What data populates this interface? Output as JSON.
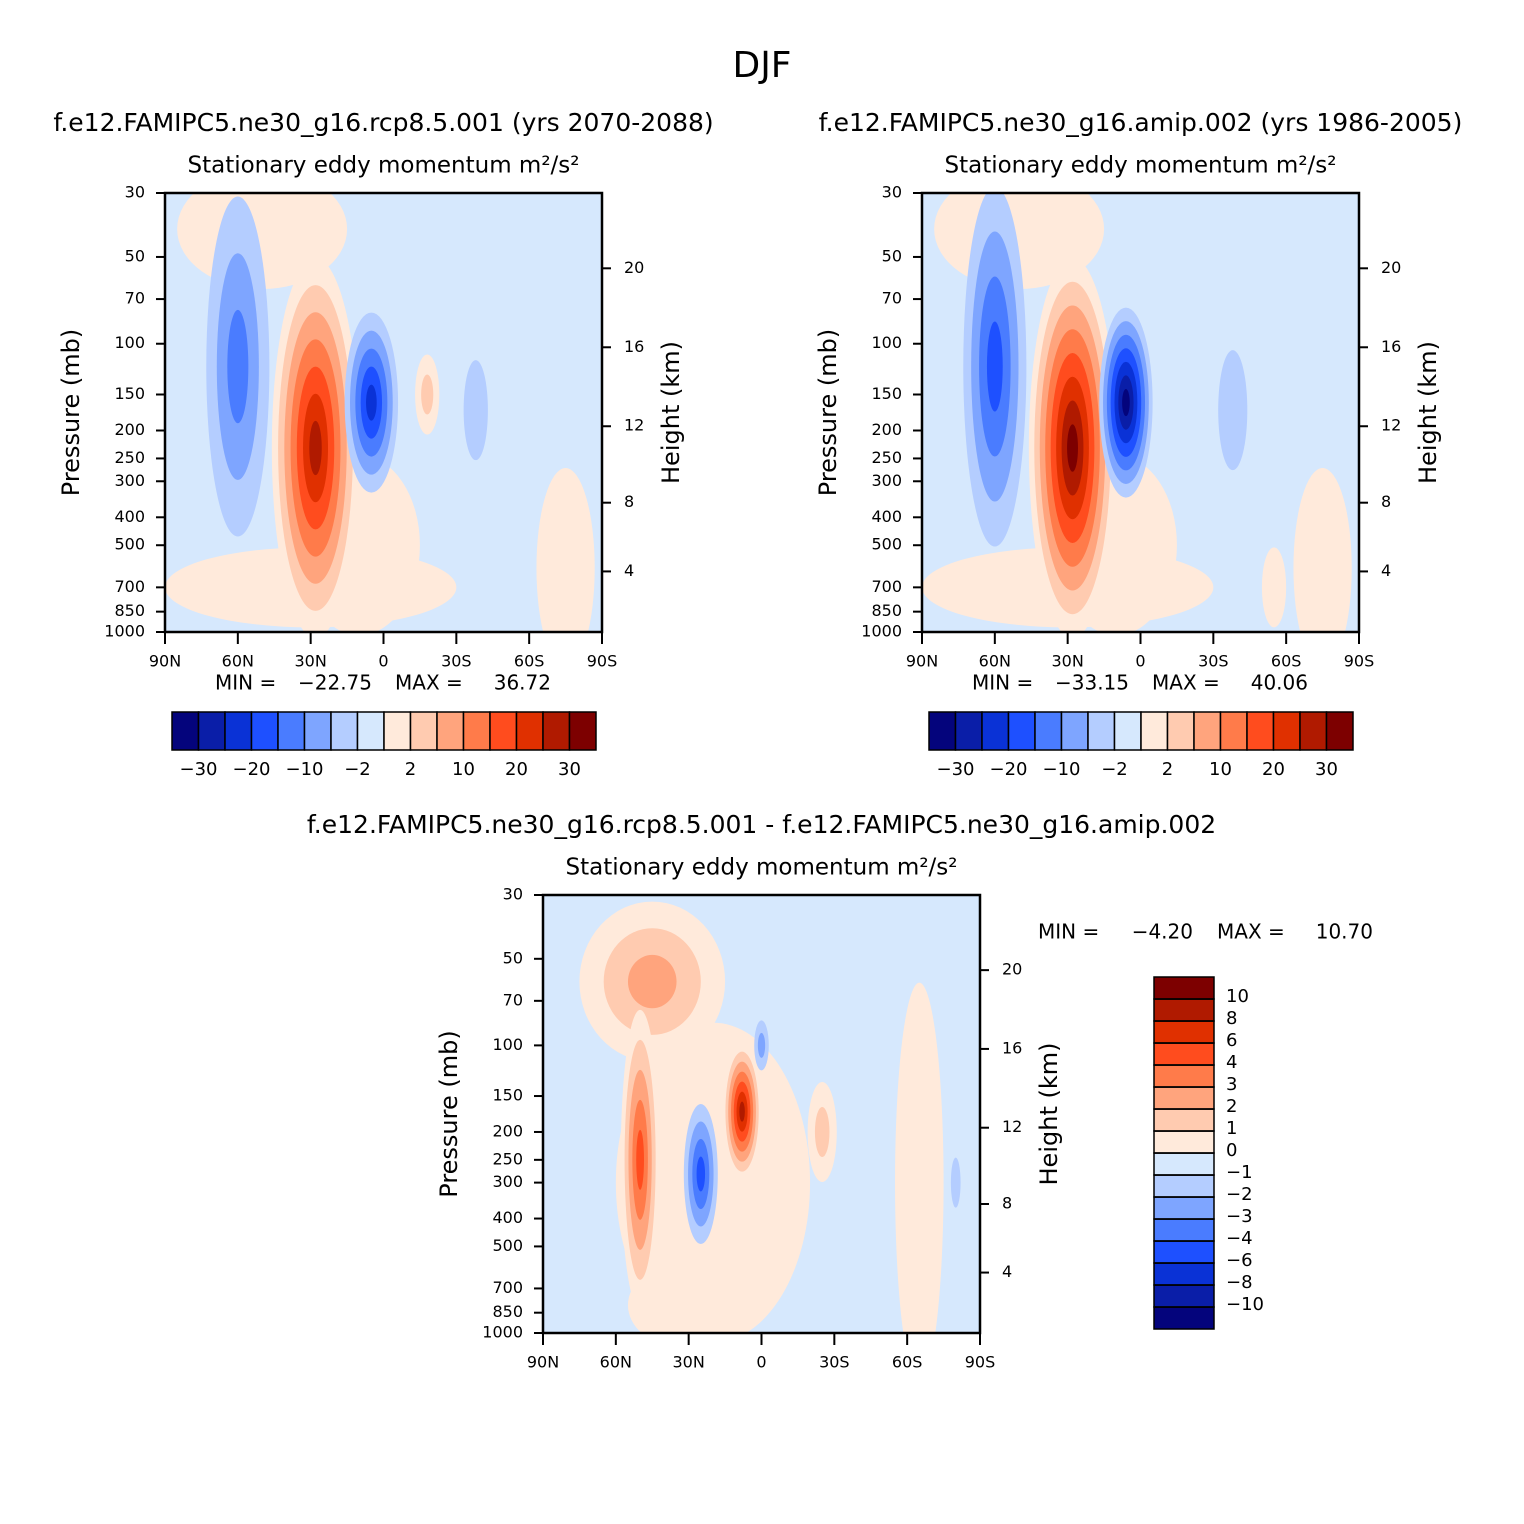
{
  "title": "DJF",
  "chart_data": [
    {
      "type": "contour",
      "title": "f.e12.FAMIPC5.ne30_g16.rcp8.5.001 (yrs 2070-2088)",
      "subtitle": "Stationary eddy momentum  m²/s²",
      "ylabel": "Pressure (mb)",
      "y2label": "Height (km)",
      "xlim": [
        90,
        -90
      ],
      "xticks": [
        {
          "value": 90,
          "label": "90N"
        },
        {
          "value": 60,
          "label": "60N"
        },
        {
          "value": 30,
          "label": "30N"
        },
        0,
        {
          "value": -30,
          "label": "30S"
        },
        {
          "value": -60,
          "label": "60S"
        },
        {
          "value": -90,
          "label": "90S"
        }
      ],
      "ylim": [
        1000,
        30
      ],
      "log_y": true,
      "yticks": [
        30,
        50,
        70,
        100,
        150,
        200,
        250,
        300,
        400,
        500,
        700,
        850,
        1000
      ],
      "y2ticks": [
        4,
        8,
        12,
        16,
        20
      ],
      "min_label": "MIN =",
      "min": {
        "value": -22.75,
        "label": "−22.75"
      },
      "max_label": "MAX =",
      "max": 36.72,
      "colorbar": {
        "orientation": "horizontal",
        "levels": [
          {
            "value": -30,
            "label": "−30"
          },
          {
            "value": -20,
            "label": "−20"
          },
          {
            "value": -10,
            "label": "−10"
          },
          {
            "value": -2,
            "label": "−2"
          },
          2,
          10,
          20,
          30
        ],
        "colors": [
          "#04047c",
          "#0a1ea8",
          "#0a32d6",
          "#1e50ff",
          "#4a7cff",
          "#7ea5ff",
          "#b4cdff",
          "#d6e8fd",
          "#ffeadb",
          "#ffcbb0",
          "#ffa47d",
          "#ff7b4a",
          "#ff4c1e",
          "#e03000",
          "#b01a00",
          "#7d0000"
        ]
      }
    },
    {
      "type": "contour",
      "title": "f.e12.FAMIPC5.ne30_g16.amip.002 (yrs 1986-2005)",
      "subtitle": "Stationary eddy momentum  m²/s²",
      "ylabel": "Pressure (mb)",
      "y2label": "Height (km)",
      "xlim": [
        90,
        -90
      ],
      "xticks": [
        {
          "value": 90,
          "label": "90N"
        },
        {
          "value": 60,
          "label": "60N"
        },
        {
          "value": 30,
          "label": "30N"
        },
        0,
        {
          "value": -30,
          "label": "30S"
        },
        {
          "value": -60,
          "label": "60S"
        },
        {
          "value": -90,
          "label": "90S"
        }
      ],
      "ylim": [
        1000,
        30
      ],
      "log_y": true,
      "yticks": [
        30,
        50,
        70,
        100,
        150,
        200,
        250,
        300,
        400,
        500,
        700,
        850,
        1000
      ],
      "y2ticks": [
        4,
        8,
        12,
        16,
        20
      ],
      "min_label": "MIN =",
      "min": {
        "value": -33.15,
        "label": "−33.15"
      },
      "max_label": "MAX =",
      "max": 40.06,
      "colorbar": {
        "orientation": "horizontal",
        "levels": [
          {
            "value": -30,
            "label": "−30"
          },
          {
            "value": -20,
            "label": "−20"
          },
          {
            "value": -10,
            "label": "−10"
          },
          {
            "value": -2,
            "label": "−2"
          },
          2,
          10,
          20,
          30
        ],
        "colors": [
          "#04047c",
          "#0a1ea8",
          "#0a32d6",
          "#1e50ff",
          "#4a7cff",
          "#7ea5ff",
          "#b4cdff",
          "#d6e8fd",
          "#ffeadb",
          "#ffcbb0",
          "#ffa47d",
          "#ff7b4a",
          "#ff4c1e",
          "#e03000",
          "#b01a00",
          "#7d0000"
        ]
      }
    },
    {
      "type": "contour",
      "title": "f.e12.FAMIPC5.ne30_g16.rcp8.5.001 - f.e12.FAMIPC5.ne30_g16.amip.002",
      "subtitle": "Stationary eddy momentum  m²/s²",
      "ylabel": "Pressure (mb)",
      "y2label": "Height (km)",
      "xlim": [
        90,
        -90
      ],
      "xticks": [
        {
          "value": 90,
          "label": "90N"
        },
        {
          "value": 60,
          "label": "60N"
        },
        {
          "value": 30,
          "label": "30N"
        },
        0,
        {
          "value": -30,
          "label": "30S"
        },
        {
          "value": -60,
          "label": "60S"
        },
        {
          "value": -90,
          "label": "90S"
        }
      ],
      "ylim": [
        1000,
        30
      ],
      "log_y": true,
      "yticks": [
        30,
        50,
        70,
        100,
        150,
        200,
        250,
        300,
        400,
        500,
        700,
        850,
        1000
      ],
      "y2ticks": [
        4,
        8,
        12,
        16,
        20
      ],
      "min_label": "MIN =",
      "min": {
        "value": -4.2,
        "label": "−4.20"
      },
      "max_label": "MAX =",
      "max": {
        "value": 10.7,
        "label": "10.70"
      },
      "colorbar": {
        "orientation": "vertical",
        "levels": [
          {
            "value": -10,
            "label": "−10"
          },
          {
            "value": -8,
            "label": "−8"
          },
          {
            "value": -6,
            "label": "−6"
          },
          {
            "value": -4,
            "label": "−4"
          },
          {
            "value": -3,
            "label": "−3"
          },
          {
            "value": -2,
            "label": "−2"
          },
          {
            "value": -1,
            "label": "−1"
          },
          0,
          1,
          2,
          3,
          4,
          6,
          8,
          10
        ],
        "colors": [
          "#04047c",
          "#0a1ea8",
          "#0a32d6",
          "#1e50ff",
          "#4a7cff",
          "#7ea5ff",
          "#b4cdff",
          "#d6e8fd",
          "#ffeadb",
          "#ffcbb0",
          "#ffa47d",
          "#ff7b4a",
          "#ff4c1e",
          "#e03000",
          "#b01a00",
          "#7d0000"
        ]
      }
    }
  ]
}
